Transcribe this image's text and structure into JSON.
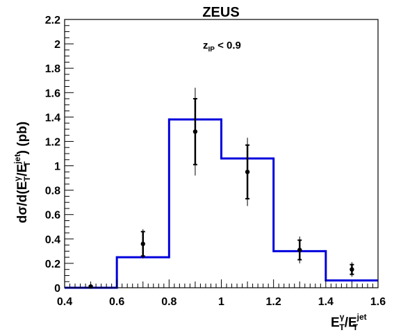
{
  "chart_data": {
    "type": "bar",
    "title": "ZEUS",
    "annotation": {
      "base": "z",
      "sub": "IP",
      "rest": " < 0.9"
    },
    "xlabel": {
      "base": "E",
      "sup1": "γ",
      "sub1": "T",
      "mid": "/E",
      "sup2": "jet",
      "sub2": "T"
    },
    "ylabel": {
      "p1": "dσ/d(E",
      "sup1": "γ",
      "sub1": "T",
      "p2": "/E",
      "sup2": "jet",
      "sub2": "T",
      "p3": ") (pb)"
    },
    "xlim": [
      0.4,
      1.6
    ],
    "ylim": [
      0,
      2.2
    ],
    "xticks": [
      0.4,
      0.6,
      0.8,
      1.0,
      1.2,
      1.4,
      1.6
    ],
    "xtick_labels": [
      "0.4",
      "0.6",
      "0.8",
      "1",
      "1.2",
      "1.4",
      "1.6"
    ],
    "yticks": [
      0,
      0.2,
      0.4,
      0.6,
      0.8,
      1.0,
      1.2,
      1.4,
      1.6,
      1.8,
      2.0,
      2.2
    ],
    "ytick_labels": [
      "0",
      "0.2",
      "0.4",
      "0.6",
      "0.8",
      "1",
      "1.2",
      "1.4",
      "1.6",
      "1.8",
      "2",
      "2.2"
    ],
    "histogram": {
      "color": "#0000dd",
      "bin_edges": [
        0.4,
        0.6,
        0.8,
        1.0,
        1.2,
        1.4,
        1.6
      ],
      "values": [
        0.0,
        0.25,
        1.38,
        1.06,
        0.3,
        0.06
      ]
    },
    "points": {
      "color": "#000000",
      "x": [
        0.5,
        0.7,
        0.9,
        1.1,
        1.3,
        1.5
      ],
      "y": [
        0.01,
        0.36,
        1.28,
        0.95,
        0.31,
        0.15
      ],
      "stat_err": [
        0.005,
        0.1,
        0.27,
        0.22,
        0.08,
        0.04
      ],
      "tot_err": [
        0.008,
        0.12,
        0.36,
        0.28,
        0.11,
        0.06
      ]
    }
  }
}
